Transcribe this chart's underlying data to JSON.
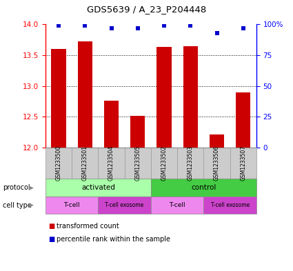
{
  "title": "GDS5639 / A_23_P204448",
  "samples": [
    "GSM1233500",
    "GSM1233501",
    "GSM1233504",
    "GSM1233505",
    "GSM1233502",
    "GSM1233503",
    "GSM1233506",
    "GSM1233507"
  ],
  "transformed_counts": [
    13.6,
    13.72,
    12.76,
    12.52,
    13.63,
    13.65,
    12.21,
    12.9
  ],
  "percentile_ranks": [
    99,
    99,
    97,
    97,
    99,
    99,
    93,
    97
  ],
  "ylim_left": [
    12,
    14
  ],
  "ylim_right": [
    0,
    100
  ],
  "yticks_left": [
    12,
    12.5,
    13,
    13.5,
    14
  ],
  "yticks_right": [
    0,
    25,
    50,
    75,
    100
  ],
  "bar_color": "#cc0000",
  "dot_color": "#0000cc",
  "bar_width": 0.55,
  "protocol_activated_color": "#aaffaa",
  "protocol_control_color": "#44cc44",
  "cell_type_labels": [
    "T-cell",
    "T-cell exosome",
    "T-cell",
    "T-cell exosome"
  ],
  "cell_type_light_color": "#ee88ee",
  "cell_type_dark_color": "#cc44cc",
  "background_color": "#ffffff",
  "label_protocol": "protocol",
  "label_cell_type": "cell type",
  "legend_text1": "transformed count",
  "legend_text2": "percentile rank within the sample"
}
